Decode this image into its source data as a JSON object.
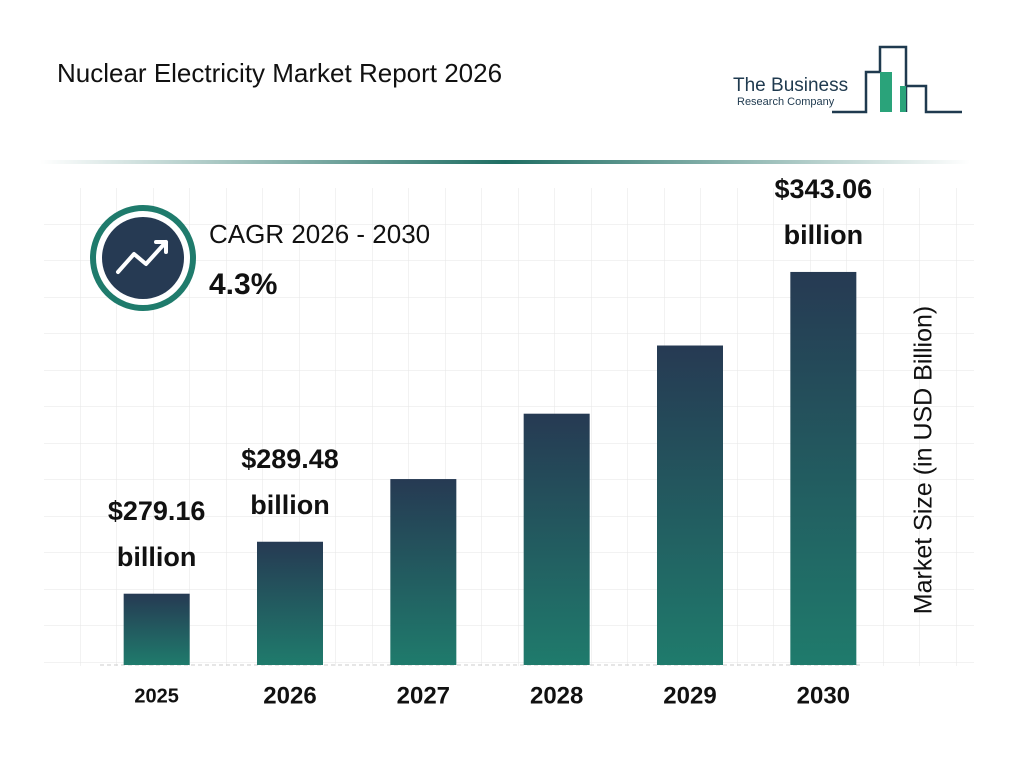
{
  "chart_data": {
    "type": "bar",
    "title": "Nuclear Electricity Market Report 2026",
    "logo": {
      "line1": "The Business",
      "line2": "Research Company"
    },
    "cagr": {
      "label": "CAGR 2026 - 2030",
      "value": "4.3%"
    },
    "y_label": "Market Size (in USD Billion)",
    "categories": [
      "2025",
      "2026",
      "2027",
      "2028",
      "2029",
      "2030"
    ],
    "values": [
      279.16,
      289.48,
      301.93,
      314.91,
      328.45,
      343.06
    ],
    "value_labels": [
      "$279.16 billion",
      "$289.48 billion",
      null,
      null,
      null,
      "$343.06 billion"
    ],
    "color_top": "#263a53",
    "color_bottom": "#1f7b6c",
    "ylim": [
      265,
      350
    ]
  }
}
